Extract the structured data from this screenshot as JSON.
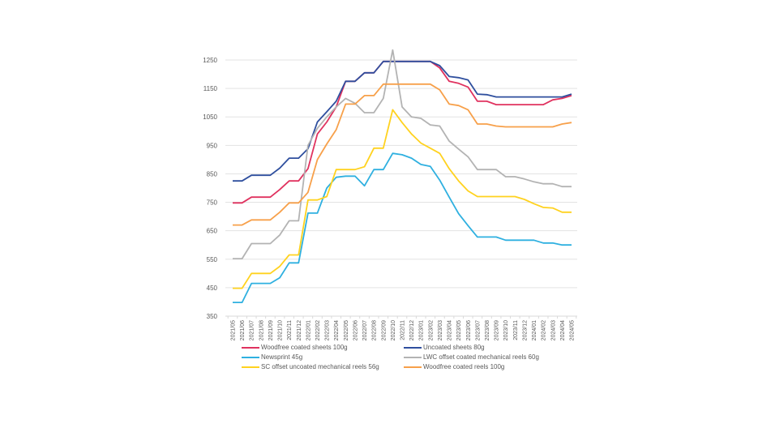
{
  "chart_data": {
    "type": "line",
    "title": "",
    "xlabel": "",
    "ylabel": "",
    "ylim": [
      350,
      1250
    ],
    "yticks": [
      350,
      450,
      550,
      650,
      750,
      850,
      950,
      1050,
      1150,
      1250
    ],
    "grid": true,
    "legend_position": "bottom",
    "x": [
      "2021/05",
      "2021/06",
      "2021/07",
      "2021/08",
      "2021/09",
      "2021/10",
      "2021/11",
      "2021/12",
      "2022/01",
      "2022/02",
      "2022/03",
      "2022/04",
      "2022/05",
      "2022/06",
      "2022/07",
      "2022/08",
      "2022/09",
      "2022/10",
      "2022/11",
      "2022/12",
      "2023/01",
      "2023/02",
      "2023/03",
      "2023/04",
      "2023/05",
      "2023/06",
      "2023/07",
      "2023/08",
      "2023/09",
      "2023/10",
      "2023/11",
      "2023/12",
      "2024/01",
      "2024/02",
      "2024/03",
      "2024/04",
      "2024/05"
    ],
    "series": [
      {
        "name": "Woodfree coated sheets 100g",
        "color": "#e0325f",
        "values": [
          748,
          748,
          768,
          768,
          768,
          795,
          825,
          825,
          868,
          990,
          1032,
          1085,
          1175,
          1175,
          1205,
          1205,
          1245,
          1245,
          1245,
          1245,
          1245,
          1245,
          1222,
          1175,
          1168,
          1155,
          1105,
          1105,
          1093,
          1093,
          1093,
          1093,
          1093,
          1093,
          1110,
          1115,
          1125
        ]
      },
      {
        "name": "Uncoated sheets 80g",
        "color": "#2f4f9e",
        "values": [
          825,
          825,
          845,
          845,
          845,
          870,
          905,
          905,
          938,
          1032,
          1068,
          1105,
          1175,
          1175,
          1205,
          1205,
          1245,
          1245,
          1245,
          1245,
          1245,
          1245,
          1230,
          1192,
          1188,
          1180,
          1130,
          1128,
          1120,
          1120,
          1120,
          1120,
          1120,
          1120,
          1120,
          1120,
          1130
        ]
      },
      {
        "name": "Newsprint 45g",
        "color": "#2fb0e0",
        "values": [
          398,
          398,
          465,
          465,
          465,
          485,
          537,
          537,
          712,
          712,
          800,
          838,
          842,
          842,
          808,
          865,
          865,
          922,
          917,
          905,
          883,
          876,
          828,
          768,
          710,
          668,
          628,
          628,
          628,
          617,
          617,
          617,
          617,
          607,
          607,
          600,
          600
        ]
      },
      {
        "name": "LWC offset coated mechanical reels 60g",
        "color": "#b3b3b3",
        "values": [
          552,
          552,
          605,
          605,
          605,
          635,
          685,
          685,
          950,
          1010,
          1050,
          1085,
          1115,
          1098,
          1065,
          1065,
          1115,
          1285,
          1085,
          1050,
          1045,
          1022,
          1018,
          965,
          937,
          910,
          865,
          865,
          865,
          840,
          840,
          832,
          822,
          815,
          815,
          805,
          805
        ]
      },
      {
        "name": "SC offset uncoated mechanical reels 56g",
        "color": "#ffd21f",
        "values": [
          448,
          448,
          500,
          500,
          500,
          525,
          565,
          565,
          758,
          758,
          770,
          865,
          865,
          865,
          875,
          940,
          940,
          1075,
          1030,
          990,
          958,
          940,
          922,
          868,
          825,
          790,
          770,
          770,
          770,
          770,
          770,
          760,
          745,
          732,
          730,
          715,
          715
        ]
      },
      {
        "name": "Woodfree coated reels 100g",
        "color": "#f7a04a",
        "values": [
          670,
          670,
          688,
          688,
          688,
          715,
          748,
          748,
          785,
          900,
          955,
          1005,
          1095,
          1095,
          1125,
          1125,
          1165,
          1165,
          1165,
          1165,
          1165,
          1165,
          1145,
          1095,
          1090,
          1075,
          1025,
          1025,
          1018,
          1015,
          1015,
          1015,
          1015,
          1015,
          1015,
          1025,
          1030
        ]
      }
    ],
    "legend_order": [
      0,
      1,
      2,
      3,
      4,
      5
    ]
  }
}
